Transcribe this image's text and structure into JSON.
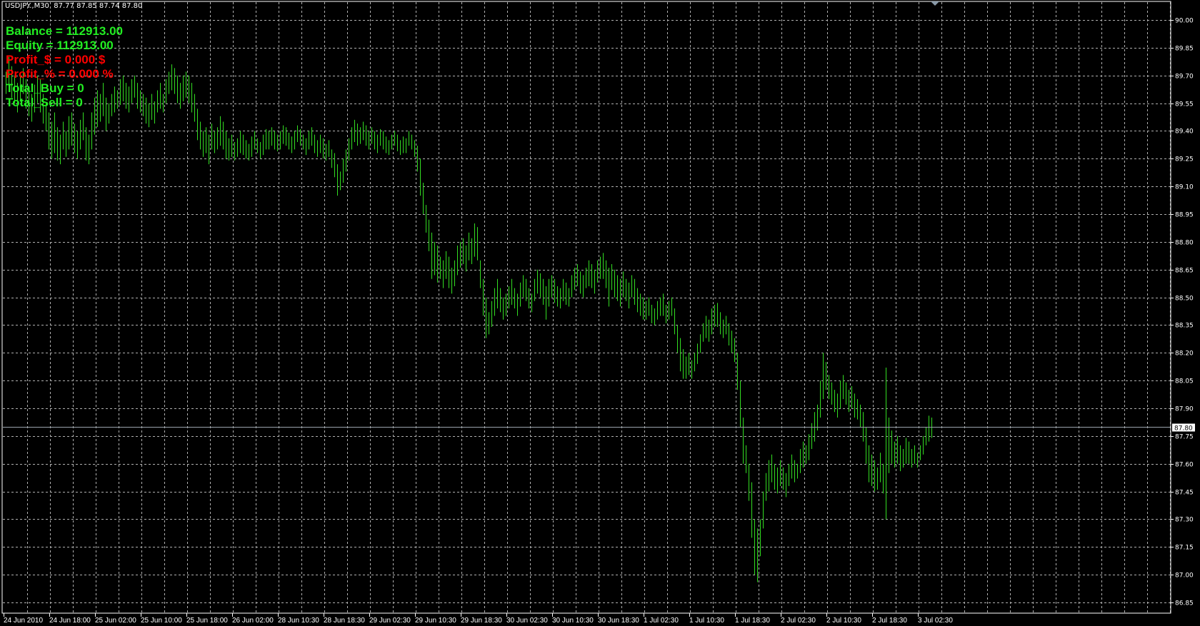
{
  "header": {
    "symbol": "USDJPY.,M30",
    "ohlc": "87.77 87.85 87.74 87.80"
  },
  "info_panel": [
    {
      "text": "Balance = 112913.00",
      "color": "#22ee22"
    },
    {
      "text": "Equity = 112913.00",
      "color": "#22ee22"
    },
    {
      "text": "Profit_$ = 0.000 $",
      "color": "#ff0000"
    },
    {
      "text": "Profit_% = 0.000 %",
      "color": "#ff0000"
    },
    {
      "text": "Total_Buy = 0",
      "color": "#22ee22"
    },
    {
      "text": "Total_Sell = 0",
      "color": "#22ee22"
    }
  ],
  "colors": {
    "background": "#000000",
    "bars": "#33dd22",
    "grid": "#b0b0b0",
    "price_line": "#9aa4ad"
  },
  "chart_data": {
    "type": "ohlc-bar",
    "symbol": "USDJPY.",
    "timeframe": "M30",
    "grid": true,
    "ylim": [
      86.85,
      90.0
    ],
    "y_ticks": [
      "90.00",
      "89.85",
      "89.70",
      "89.55",
      "89.40",
      "89.25",
      "89.10",
      "88.95",
      "88.80",
      "88.65",
      "88.50",
      "88.35",
      "88.20",
      "88.05",
      "87.90",
      "87.75",
      "87.60",
      "87.45",
      "87.30",
      "87.15",
      "87.00",
      "86.85"
    ],
    "x_ticks": [
      "24 Jun 2010",
      "24 Jun 18:00",
      "25 Jun 02:00",
      "25 Jun 10:00",
      "25 Jun 18:00",
      "26 Jun 02:00",
      "28 Jun 10:30",
      "28 Jun 18:30",
      "29 Jun 02:30",
      "29 Jun 10:30",
      "29 Jun 18:30",
      "30 Jun 02:30",
      "30 Jun 10:30",
      "30 Jun 18:30",
      "1 Jul 02:30",
      "1 Jul 10:30",
      "1 Jul 18:30",
      "2 Jul 02:30",
      "2 Jul 10:30",
      "2 Jul 18:30",
      "3 Jul 02:30"
    ],
    "current_price": "87.80",
    "last_bar": {
      "open": 87.77,
      "high": 87.85,
      "low": 87.74,
      "close": 87.8
    },
    "bars_high_low": [
      [
        89.72,
        89.6
      ],
      [
        89.8,
        89.62
      ],
      [
        89.75,
        89.58
      ],
      [
        89.7,
        89.55
      ],
      [
        89.66,
        89.5
      ],
      [
        89.7,
        89.56
      ],
      [
        89.74,
        89.6
      ],
      [
        89.68,
        89.52
      ],
      [
        89.62,
        89.48
      ],
      [
        89.6,
        89.45
      ],
      [
        89.65,
        89.5
      ],
      [
        89.7,
        89.55
      ],
      [
        89.68,
        89.5
      ],
      [
        89.6,
        89.44
      ],
      [
        89.55,
        89.4
      ],
      [
        89.5,
        89.3
      ],
      [
        89.45,
        89.25
      ],
      [
        89.5,
        89.28
      ],
      [
        89.42,
        89.24
      ],
      [
        89.38,
        89.22
      ],
      [
        89.45,
        89.3
      ],
      [
        89.4,
        89.26
      ],
      [
        89.48,
        89.3
      ],
      [
        89.5,
        89.32
      ],
      [
        89.44,
        89.28
      ],
      [
        89.4,
        89.25
      ],
      [
        89.46,
        89.3
      ],
      [
        89.5,
        89.35
      ],
      [
        89.42,
        89.24
      ],
      [
        89.38,
        89.22
      ],
      [
        89.5,
        89.3
      ],
      [
        89.58,
        89.38
      ],
      [
        89.62,
        89.42
      ],
      [
        89.6,
        89.45
      ],
      [
        89.66,
        89.48
      ],
      [
        89.58,
        89.4
      ],
      [
        89.55,
        89.44
      ],
      [
        89.6,
        89.48
      ],
      [
        89.64,
        89.5
      ],
      [
        89.62,
        89.52
      ],
      [
        89.68,
        89.54
      ],
      [
        89.7,
        89.56
      ],
      [
        89.66,
        89.52
      ],
      [
        89.64,
        89.5
      ],
      [
        89.68,
        89.55
      ],
      [
        89.7,
        89.58
      ],
      [
        89.66,
        89.52
      ],
      [
        89.62,
        89.5
      ],
      [
        89.6,
        89.48
      ],
      [
        89.58,
        89.44
      ],
      [
        89.55,
        89.42
      ],
      [
        89.6,
        89.46
      ],
      [
        89.56,
        89.44
      ],
      [
        89.62,
        89.5
      ],
      [
        89.66,
        89.52
      ],
      [
        89.6,
        89.5
      ],
      [
        89.68,
        89.55
      ],
      [
        89.72,
        89.6
      ],
      [
        89.76,
        89.62
      ],
      [
        89.74,
        89.6
      ],
      [
        89.7,
        89.55
      ],
      [
        89.66,
        89.52
      ],
      [
        89.7,
        89.56
      ],
      [
        89.72,
        89.58
      ],
      [
        89.7,
        89.55
      ],
      [
        89.66,
        89.5
      ],
      [
        89.6,
        89.45
      ],
      [
        89.52,
        89.35
      ],
      [
        89.45,
        89.3
      ],
      [
        89.4,
        89.26
      ],
      [
        89.42,
        89.28
      ],
      [
        89.38,
        89.22
      ],
      [
        89.44,
        89.3
      ],
      [
        89.4,
        89.28
      ],
      [
        89.42,
        89.3
      ],
      [
        89.48,
        89.32
      ],
      [
        89.45,
        89.3
      ],
      [
        89.4,
        89.25
      ],
      [
        89.36,
        89.24
      ],
      [
        89.38,
        89.26
      ],
      [
        89.34,
        89.24
      ],
      [
        89.36,
        89.26
      ],
      [
        89.4,
        89.28
      ],
      [
        89.38,
        89.27
      ],
      [
        89.35,
        89.25
      ],
      [
        89.33,
        89.24
      ],
      [
        89.37,
        89.26
      ],
      [
        89.4,
        89.3
      ],
      [
        89.36,
        89.28
      ],
      [
        89.34,
        89.25
      ],
      [
        89.38,
        89.27
      ],
      [
        89.41,
        89.3
      ],
      [
        89.4,
        89.3
      ],
      [
        89.42,
        89.32
      ],
      [
        89.4,
        89.3
      ],
      [
        89.38,
        89.29
      ],
      [
        89.4,
        89.3
      ],
      [
        89.43,
        89.33
      ],
      [
        89.42,
        89.32
      ],
      [
        89.39,
        89.3
      ],
      [
        89.37,
        89.28
      ],
      [
        89.4,
        89.3
      ],
      [
        89.43,
        89.34
      ],
      [
        89.41,
        89.32
      ],
      [
        89.38,
        89.3
      ],
      [
        89.36,
        89.27
      ],
      [
        89.4,
        89.3
      ],
      [
        89.42,
        89.32
      ],
      [
        89.38,
        89.28
      ],
      [
        89.35,
        89.26
      ],
      [
        89.38,
        89.28
      ],
      [
        89.36,
        89.25
      ],
      [
        89.33,
        89.24
      ],
      [
        89.35,
        89.26
      ],
      [
        89.3,
        89.2
      ],
      [
        89.28,
        89.15
      ],
      [
        89.22,
        89.05
      ],
      [
        89.18,
        89.08
      ],
      [
        89.25,
        89.12
      ],
      [
        89.3,
        89.18
      ],
      [
        89.36,
        89.24
      ],
      [
        89.42,
        89.3
      ],
      [
        89.46,
        89.34
      ],
      [
        89.44,
        89.32
      ],
      [
        89.42,
        89.33
      ],
      [
        89.45,
        89.35
      ],
      [
        89.43,
        89.32
      ],
      [
        89.4,
        89.3
      ],
      [
        89.42,
        89.33
      ],
      [
        89.4,
        89.3
      ],
      [
        89.38,
        89.28
      ],
      [
        89.41,
        89.32
      ],
      [
        89.4,
        89.3
      ],
      [
        89.37,
        89.28
      ],
      [
        89.35,
        89.27
      ],
      [
        89.38,
        89.3
      ],
      [
        89.4,
        89.32
      ],
      [
        89.38,
        89.29
      ],
      [
        89.35,
        89.27
      ],
      [
        89.37,
        89.28
      ],
      [
        89.36,
        89.28
      ],
      [
        89.4,
        89.32
      ],
      [
        89.38,
        89.3
      ],
      [
        89.35,
        89.26
      ],
      [
        89.32,
        89.18
      ],
      [
        89.25,
        89.05
      ],
      [
        89.12,
        88.95
      ],
      [
        89.0,
        88.85
      ],
      [
        88.92,
        88.75
      ],
      [
        88.85,
        88.6
      ],
      [
        88.8,
        88.62
      ],
      [
        88.78,
        88.58
      ],
      [
        88.72,
        88.6
      ],
      [
        88.7,
        88.55
      ],
      [
        88.75,
        88.6
      ],
      [
        88.72,
        88.55
      ],
      [
        88.66,
        88.52
      ],
      [
        88.7,
        88.56
      ],
      [
        88.78,
        88.62
      ],
      [
        88.8,
        88.66
      ],
      [
        88.82,
        88.68
      ],
      [
        88.78,
        88.64
      ],
      [
        88.85,
        88.7
      ],
      [
        88.82,
        88.68
      ],
      [
        88.9,
        88.72
      ],
      [
        88.88,
        88.7
      ],
      [
        88.7,
        88.55
      ],
      [
        88.6,
        88.4
      ],
      [
        88.5,
        88.28
      ],
      [
        88.42,
        88.3
      ],
      [
        88.48,
        88.34
      ],
      [
        88.55,
        88.4
      ],
      [
        88.6,
        88.44
      ],
      [
        88.55,
        88.42
      ],
      [
        88.5,
        88.38
      ],
      [
        88.52,
        88.4
      ],
      [
        88.56,
        88.44
      ],
      [
        88.6,
        88.46
      ],
      [
        88.55,
        88.44
      ],
      [
        88.52,
        88.4
      ],
      [
        88.58,
        88.45
      ],
      [
        88.62,
        88.5
      ],
      [
        88.6,
        88.48
      ],
      [
        88.55,
        88.44
      ],
      [
        88.52,
        88.42
      ],
      [
        88.6,
        88.48
      ],
      [
        88.65,
        88.52
      ],
      [
        88.63,
        88.5
      ],
      [
        88.6,
        88.46
      ],
      [
        88.56,
        88.38
      ],
      [
        88.6,
        88.45
      ],
      [
        88.62,
        88.5
      ],
      [
        88.6,
        88.47
      ],
      [
        88.56,
        88.45
      ],
      [
        88.55,
        88.44
      ],
      [
        88.6,
        88.48
      ],
      [
        88.58,
        88.46
      ],
      [
        88.55,
        88.45
      ],
      [
        88.62,
        88.5
      ],
      [
        88.66,
        88.54
      ],
      [
        88.68,
        88.56
      ],
      [
        88.64,
        88.52
      ],
      [
        88.62,
        88.5
      ],
      [
        88.66,
        88.55
      ],
      [
        88.7,
        88.56
      ],
      [
        88.68,
        88.55
      ],
      [
        88.65,
        88.52
      ],
      [
        88.7,
        88.58
      ],
      [
        88.72,
        88.6
      ],
      [
        88.74,
        88.6
      ],
      [
        88.7,
        88.55
      ],
      [
        88.66,
        88.45
      ],
      [
        88.68,
        88.54
      ],
      [
        88.65,
        88.5
      ],
      [
        88.62,
        88.48
      ],
      [
        88.6,
        88.45
      ],
      [
        88.64,
        88.5
      ],
      [
        88.6,
        88.48
      ],
      [
        88.58,
        88.44
      ],
      [
        88.62,
        88.5
      ],
      [
        88.6,
        88.46
      ],
      [
        88.55,
        88.42
      ],
      [
        88.52,
        88.4
      ],
      [
        88.5,
        88.38
      ],
      [
        88.48,
        88.38
      ],
      [
        88.5,
        88.4
      ],
      [
        88.46,
        88.36
      ],
      [
        88.44,
        88.35
      ],
      [
        88.48,
        88.38
      ],
      [
        88.5,
        88.4
      ],
      [
        88.52,
        88.4
      ],
      [
        88.46,
        88.36
      ],
      [
        88.48,
        88.38
      ],
      [
        88.5,
        88.4
      ],
      [
        88.44,
        88.3
      ],
      [
        88.35,
        88.2
      ],
      [
        88.28,
        88.1
      ],
      [
        88.22,
        88.06
      ],
      [
        88.18,
        88.06
      ],
      [
        88.2,
        88.08
      ],
      [
        88.16,
        88.06
      ],
      [
        88.2,
        88.1
      ],
      [
        88.25,
        88.14
      ],
      [
        88.3,
        88.2
      ],
      [
        88.36,
        88.26
      ],
      [
        88.4,
        88.28
      ],
      [
        88.38,
        88.26
      ],
      [
        88.44,
        88.3
      ],
      [
        88.46,
        88.34
      ],
      [
        88.47,
        88.34
      ],
      [
        88.42,
        88.3
      ],
      [
        88.38,
        88.28
      ],
      [
        88.4,
        88.3
      ],
      [
        88.36,
        88.24
      ],
      [
        88.32,
        88.2
      ],
      [
        88.28,
        88.15
      ],
      [
        88.2,
        88.0
      ],
      [
        88.05,
        87.8
      ],
      [
        87.85,
        87.6
      ],
      [
        87.7,
        87.55
      ],
      [
        87.6,
        87.4
      ],
      [
        87.5,
        87.2
      ],
      [
        87.3,
        87.0
      ],
      [
        87.25,
        86.96
      ],
      [
        87.3,
        87.1
      ],
      [
        87.45,
        87.25
      ],
      [
        87.55,
        87.4
      ],
      [
        87.62,
        87.45
      ],
      [
        87.65,
        87.5
      ],
      [
        87.6,
        87.46
      ],
      [
        87.58,
        87.44
      ],
      [
        87.62,
        87.48
      ],
      [
        87.58,
        87.46
      ],
      [
        87.55,
        87.42
      ],
      [
        87.6,
        87.48
      ],
      [
        87.65,
        87.52
      ],
      [
        87.62,
        87.5
      ],
      [
        87.6,
        87.52
      ],
      [
        87.68,
        87.55
      ],
      [
        87.72,
        87.58
      ],
      [
        87.7,
        87.6
      ],
      [
        87.76,
        87.62
      ],
      [
        87.82,
        87.68
      ],
      [
        87.88,
        87.72
      ],
      [
        87.92,
        87.78
      ],
      [
        88.05,
        87.85
      ],
      [
        88.2,
        87.95
      ],
      [
        88.15,
        88.0
      ],
      [
        88.08,
        87.95
      ],
      [
        88.04,
        87.92
      ],
      [
        88.0,
        87.88
      ],
      [
        87.98,
        87.85
      ],
      [
        88.05,
        87.9
      ],
      [
        88.08,
        87.95
      ],
      [
        88.04,
        87.92
      ],
      [
        88.0,
        87.88
      ],
      [
        88.02,
        87.9
      ],
      [
        87.98,
        87.85
      ],
      [
        87.95,
        87.84
      ],
      [
        87.92,
        87.8
      ],
      [
        87.88,
        87.72
      ],
      [
        87.8,
        87.6
      ],
      [
        87.7,
        87.5
      ],
      [
        87.65,
        87.48
      ],
      [
        87.62,
        87.45
      ],
      [
        87.58,
        87.46
      ],
      [
        87.66,
        87.5
      ],
      [
        87.6,
        87.44
      ],
      [
        88.12,
        87.3
      ],
      [
        87.85,
        87.55
      ],
      [
        87.78,
        87.6
      ],
      [
        87.72,
        87.58
      ],
      [
        87.75,
        87.6
      ],
      [
        87.7,
        87.56
      ],
      [
        87.68,
        87.58
      ],
      [
        87.74,
        87.6
      ],
      [
        87.72,
        87.6
      ],
      [
        87.68,
        87.58
      ],
      [
        87.7,
        87.6
      ],
      [
        87.66,
        87.58
      ],
      [
        87.7,
        87.62
      ],
      [
        87.75,
        87.65
      ],
      [
        87.8,
        87.7
      ],
      [
        87.86,
        87.72
      ],
      [
        87.85,
        87.74
      ]
    ]
  }
}
